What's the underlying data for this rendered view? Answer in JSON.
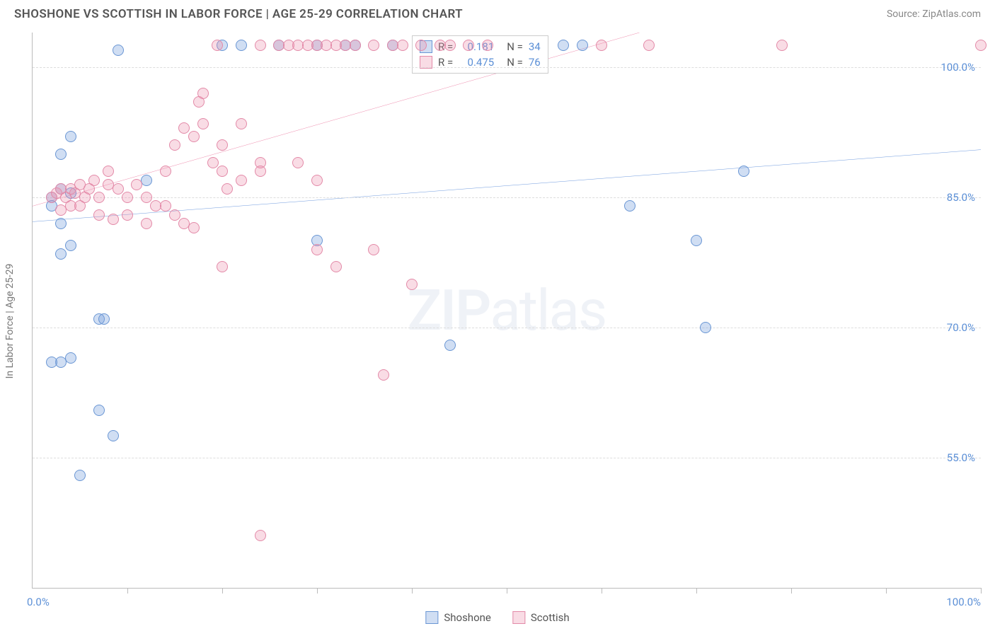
{
  "header": {
    "title": "SHOSHONE VS SCOTTISH IN LABOR FORCE | AGE 25-29 CORRELATION CHART",
    "source": "Source: ZipAtlas.com"
  },
  "watermark": {
    "zip": "ZIP",
    "atlas": "atlas"
  },
  "chart": {
    "type": "scatter",
    "y_axis_label": "In Labor Force | Age 25-29",
    "xlim": [
      0,
      100
    ],
    "ylim": [
      40,
      104
    ],
    "x_ticks_label_left": "0.0%",
    "x_ticks_label_right": "100.0%",
    "x_tick_positions": [
      10,
      20,
      30,
      40,
      50,
      60,
      70,
      80,
      90,
      100
    ],
    "y_gridlines": [
      {
        "value": 55,
        "label": "55.0%"
      },
      {
        "value": 70,
        "label": "70.0%"
      },
      {
        "value": 85,
        "label": "85.0%"
      },
      {
        "value": 100,
        "label": "100.0%"
      }
    ],
    "grid_color": "#dddddd",
    "background_color": "#ffffff",
    "point_radius": 8,
    "series": [
      {
        "name": "Shoshone",
        "fill_color": "rgba(120,160,220,0.35)",
        "stroke_color": "#6a96d4",
        "trend_color": "#2f6fd0",
        "trend_line": {
          "x1": 0,
          "y1": 82.2,
          "x2": 100,
          "y2": 90.5
        },
        "legend": {
          "r_label": "R =",
          "r_value": "0.181",
          "n_label": "N =",
          "n_value": "34"
        },
        "points": [
          {
            "x": 2,
            "y": 85
          },
          {
            "x": 3,
            "y": 90
          },
          {
            "x": 4,
            "y": 92
          },
          {
            "x": 9,
            "y": 102
          },
          {
            "x": 3,
            "y": 86
          },
          {
            "x": 2,
            "y": 84
          },
          {
            "x": 4,
            "y": 85.5
          },
          {
            "x": 12,
            "y": 87
          },
          {
            "x": 3,
            "y": 82
          },
          {
            "x": 3,
            "y": 78.5
          },
          {
            "x": 4,
            "y": 79.5
          },
          {
            "x": 7,
            "y": 71
          },
          {
            "x": 7.5,
            "y": 71
          },
          {
            "x": 3,
            "y": 66
          },
          {
            "x": 2,
            "y": 66
          },
          {
            "x": 4,
            "y": 66.5
          },
          {
            "x": 7,
            "y": 60.5
          },
          {
            "x": 8.5,
            "y": 57.5
          },
          {
            "x": 5,
            "y": 53
          },
          {
            "x": 20,
            "y": 102.5
          },
          {
            "x": 22,
            "y": 102.5
          },
          {
            "x": 26,
            "y": 102.5
          },
          {
            "x": 30,
            "y": 102.5
          },
          {
            "x": 33,
            "y": 102.5
          },
          {
            "x": 38,
            "y": 102.5
          },
          {
            "x": 34,
            "y": 102.5
          },
          {
            "x": 30,
            "y": 80
          },
          {
            "x": 44,
            "y": 68
          },
          {
            "x": 63,
            "y": 84
          },
          {
            "x": 75,
            "y": 88
          },
          {
            "x": 70,
            "y": 80
          },
          {
            "x": 56,
            "y": 102.5
          },
          {
            "x": 58,
            "y": 102.5
          },
          {
            "x": 71,
            "y": 70
          }
        ]
      },
      {
        "name": "Scottish",
        "fill_color": "rgba(235,140,170,0.30)",
        "stroke_color": "#e38aa8",
        "trend_color": "#e65a8a",
        "trend_line": {
          "x1": 0,
          "y1": 84,
          "x2": 64,
          "y2": 104
        },
        "legend": {
          "r_label": "R =",
          "r_value": "0.475",
          "n_label": "N =",
          "n_value": "76"
        },
        "points": [
          {
            "x": 2,
            "y": 85
          },
          {
            "x": 2.5,
            "y": 85.5
          },
          {
            "x": 3,
            "y": 86
          },
          {
            "x": 3.5,
            "y": 85
          },
          {
            "x": 4,
            "y": 86
          },
          {
            "x": 4.5,
            "y": 85.5
          },
          {
            "x": 5,
            "y": 86.5
          },
          {
            "x": 5.5,
            "y": 85
          },
          {
            "x": 6,
            "y": 86
          },
          {
            "x": 7,
            "y": 85
          },
          {
            "x": 8,
            "y": 86.5
          },
          {
            "x": 6.5,
            "y": 87
          },
          {
            "x": 8,
            "y": 88
          },
          {
            "x": 9,
            "y": 86
          },
          {
            "x": 10,
            "y": 85
          },
          {
            "x": 11,
            "y": 86.5
          },
          {
            "x": 12,
            "y": 85
          },
          {
            "x": 7,
            "y": 83
          },
          {
            "x": 8.5,
            "y": 82.5
          },
          {
            "x": 4,
            "y": 84
          },
          {
            "x": 10,
            "y": 83
          },
          {
            "x": 5,
            "y": 84
          },
          {
            "x": 3,
            "y": 83.5
          },
          {
            "x": 14,
            "y": 88
          },
          {
            "x": 15,
            "y": 91
          },
          {
            "x": 16,
            "y": 93
          },
          {
            "x": 17,
            "y": 92
          },
          {
            "x": 17.5,
            "y": 96
          },
          {
            "x": 18,
            "y": 93.5
          },
          {
            "x": 20,
            "y": 91
          },
          {
            "x": 22,
            "y": 93.5
          },
          {
            "x": 19,
            "y": 89
          },
          {
            "x": 20,
            "y": 88
          },
          {
            "x": 20.5,
            "y": 86
          },
          {
            "x": 22,
            "y": 87
          },
          {
            "x": 24,
            "y": 89
          },
          {
            "x": 18,
            "y": 97
          },
          {
            "x": 19.5,
            "y": 102.5
          },
          {
            "x": 24,
            "y": 88
          },
          {
            "x": 14,
            "y": 84
          },
          {
            "x": 15,
            "y": 83
          },
          {
            "x": 16,
            "y": 82
          },
          {
            "x": 17,
            "y": 81.5
          },
          {
            "x": 12,
            "y": 82
          },
          {
            "x": 13,
            "y": 84
          },
          {
            "x": 24,
            "y": 102.5
          },
          {
            "x": 26,
            "y": 102.5
          },
          {
            "x": 27,
            "y": 102.5
          },
          {
            "x": 28,
            "y": 102.5
          },
          {
            "x": 29,
            "y": 102.5
          },
          {
            "x": 30,
            "y": 102.5
          },
          {
            "x": 31,
            "y": 102.5
          },
          {
            "x": 32,
            "y": 102.5
          },
          {
            "x": 33,
            "y": 102.5
          },
          {
            "x": 34,
            "y": 102.5
          },
          {
            "x": 36,
            "y": 102.5
          },
          {
            "x": 38,
            "y": 102.5
          },
          {
            "x": 39,
            "y": 102.5
          },
          {
            "x": 41,
            "y": 102.5
          },
          {
            "x": 43,
            "y": 102.5
          },
          {
            "x": 44,
            "y": 102.5
          },
          {
            "x": 46,
            "y": 102.5
          },
          {
            "x": 20,
            "y": 77
          },
          {
            "x": 28,
            "y": 89
          },
          {
            "x": 30,
            "y": 79
          },
          {
            "x": 32,
            "y": 77
          },
          {
            "x": 36,
            "y": 79
          },
          {
            "x": 37,
            "y": 64.5
          },
          {
            "x": 24,
            "y": 46
          },
          {
            "x": 40,
            "y": 75
          },
          {
            "x": 48,
            "y": 102.5
          },
          {
            "x": 60,
            "y": 102.5
          },
          {
            "x": 65,
            "y": 102.5
          },
          {
            "x": 79,
            "y": 102.5
          },
          {
            "x": 100,
            "y": 102.5
          },
          {
            "x": 30,
            "y": 87
          }
        ]
      }
    ]
  }
}
